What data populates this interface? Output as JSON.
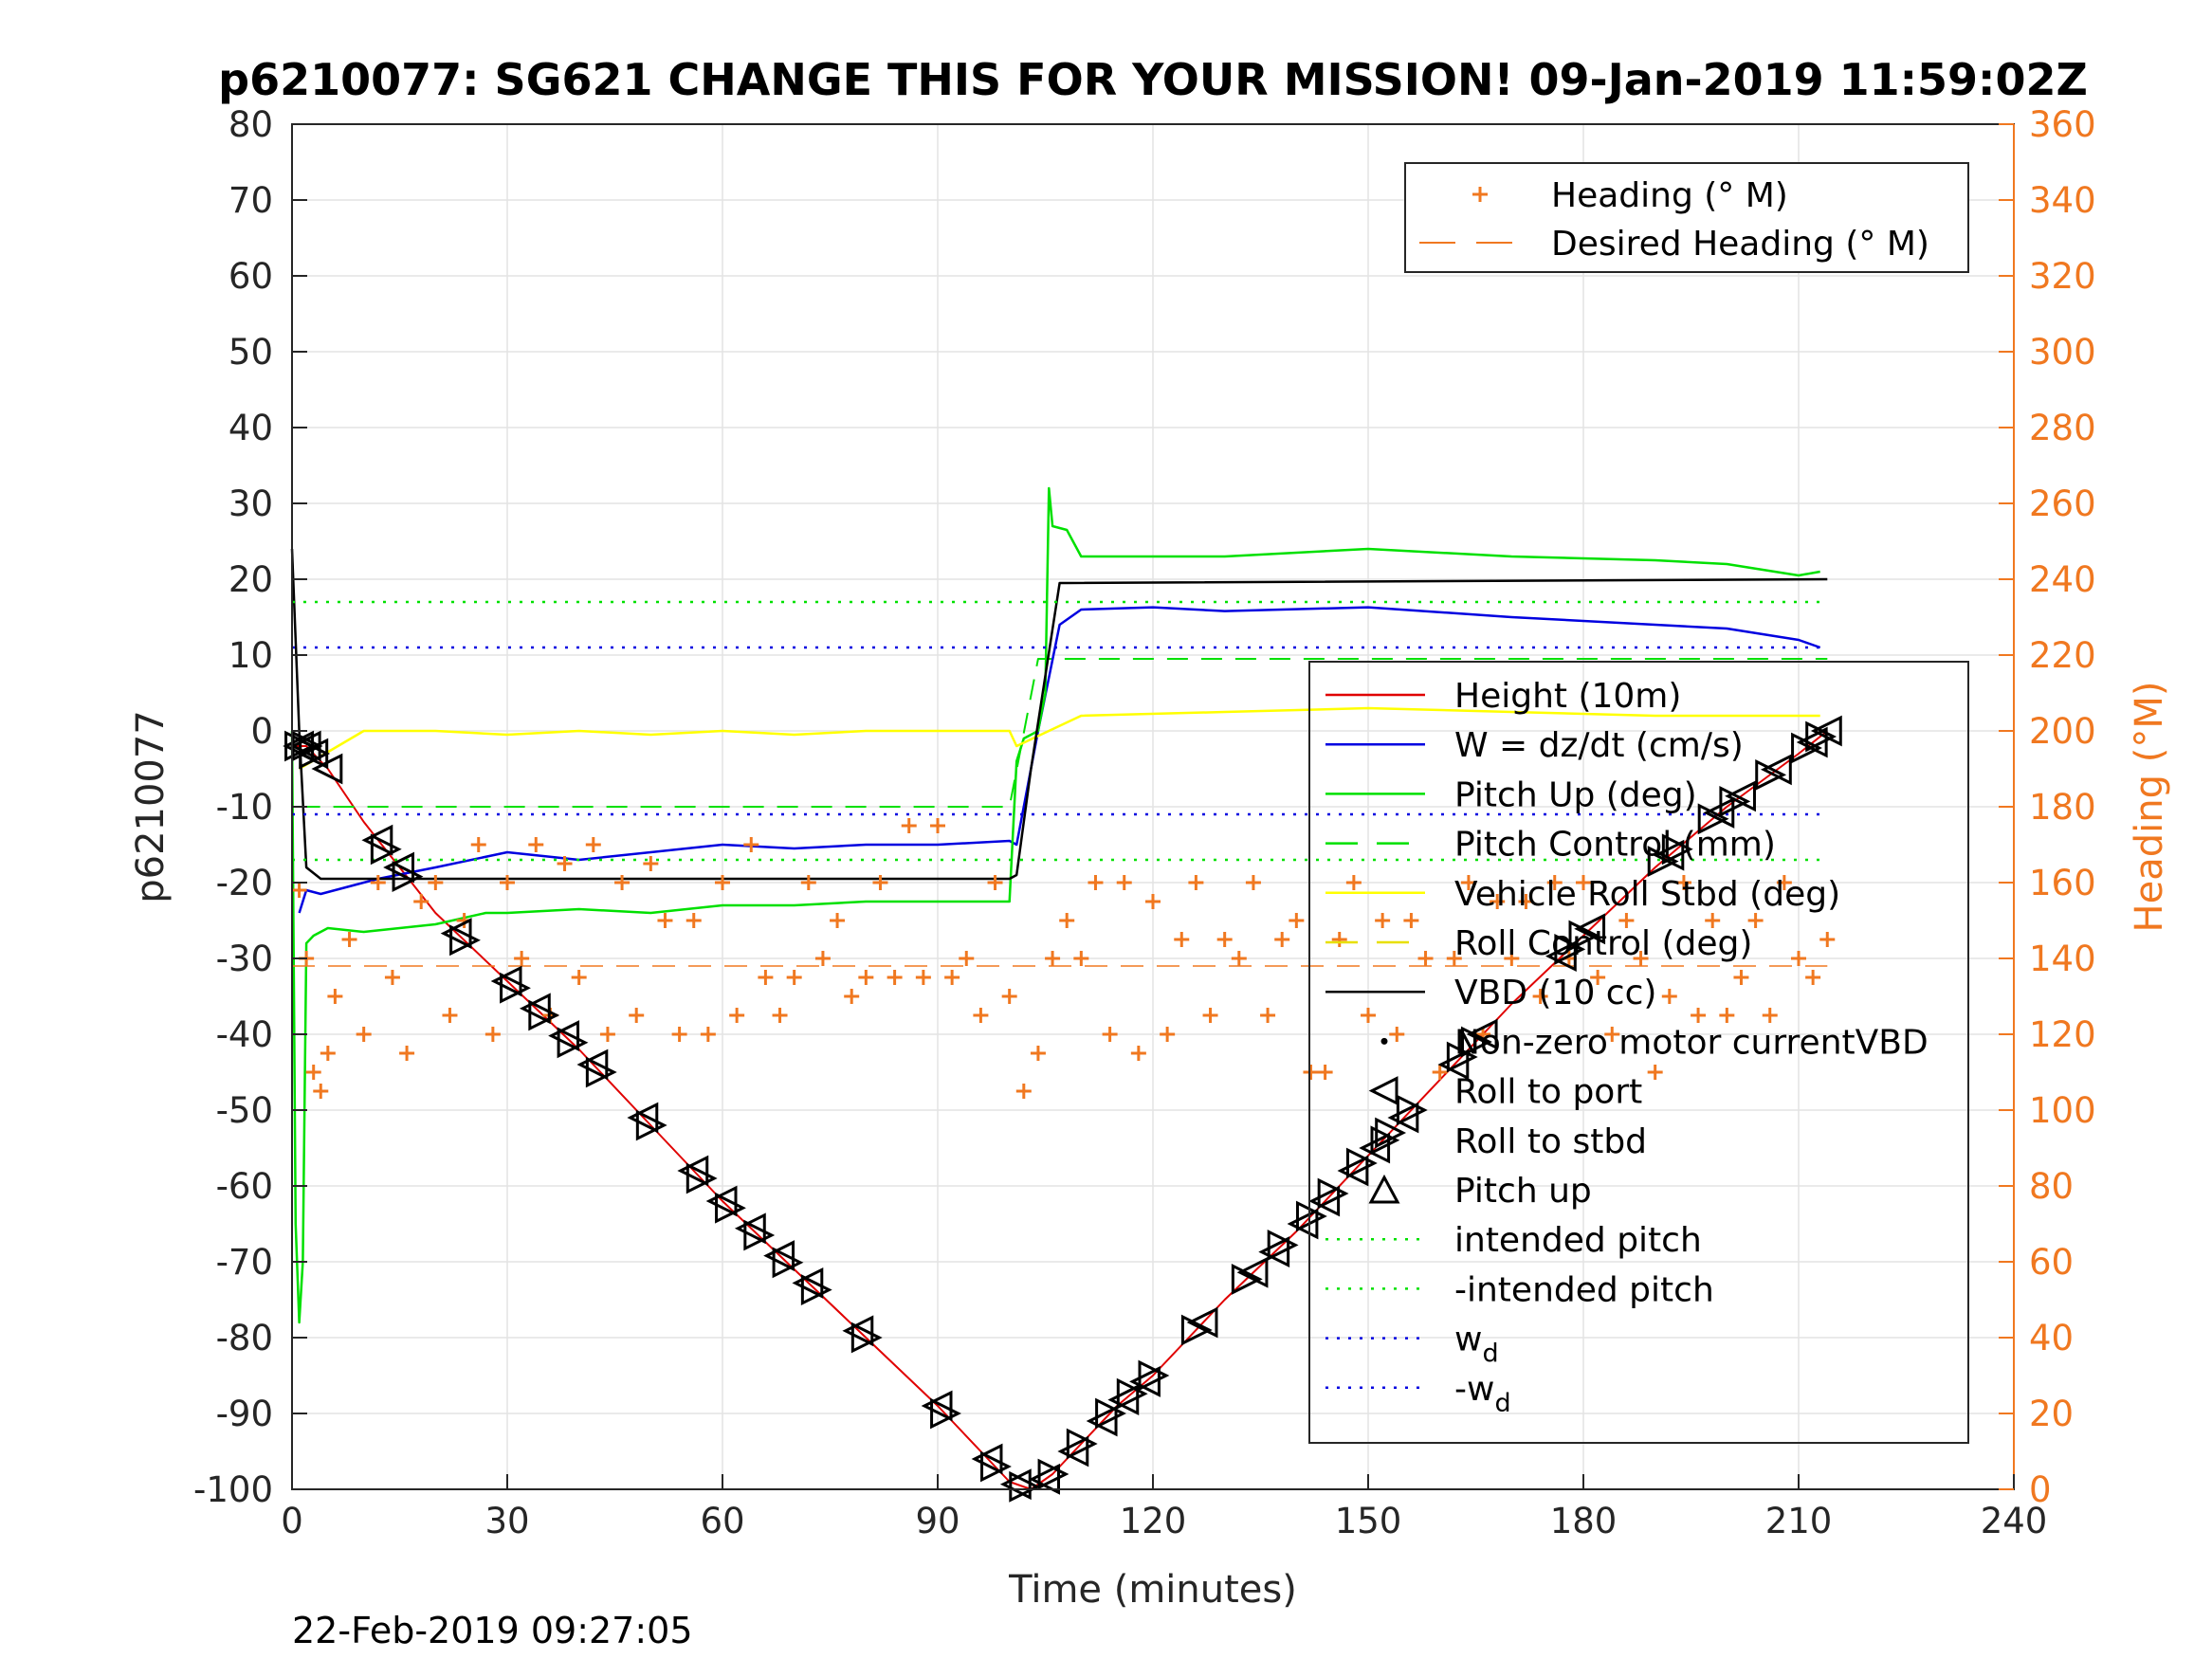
{
  "chart_data": {
    "type": "line",
    "title": "p6210077: SG621 CHANGE THIS FOR YOUR MISSION! 09-Jan-2019 11:59:02Z",
    "xlabel": "Time (minutes)",
    "ylabel_left": "p6210077",
    "ylabel_right": "Heading (°M)",
    "footer": "22-Feb-2019 09:27:05",
    "xlim": [
      0,
      240
    ],
    "ylim_left": [
      -100,
      80
    ],
    "ylim_right": [
      0,
      360
    ],
    "x_ticks": [
      0,
      30,
      60,
      90,
      120,
      150,
      180,
      210,
      240
    ],
    "y_ticks_left": [
      80,
      70,
      60,
      50,
      40,
      30,
      20,
      10,
      0,
      -10,
      -20,
      -30,
      -40,
      -50,
      -60,
      -70,
      -80,
      -90,
      -100
    ],
    "y_ticks_right": [
      360,
      340,
      320,
      300,
      280,
      260,
      240,
      220,
      200,
      180,
      160,
      140,
      120,
      100,
      80,
      60,
      40,
      20,
      0
    ],
    "grid": true,
    "colors": {
      "height": "#e00000",
      "w": "#0000e0",
      "pitch_up": "#00e000",
      "pitch_control": "#00e000",
      "roll": "#ffff00",
      "roll_control": "#e8e000",
      "vbd": "#000000",
      "heading": "#f07820",
      "intended_pitch": "#00e000",
      "wd": "#0000e0",
      "markers": "#000000"
    },
    "legend_heading": {
      "position": "top-right",
      "entries": [
        {
          "label": "Heading (° M)",
          "style": "plus"
        },
        {
          "label": "Desired Heading (° M)",
          "style": "dash"
        }
      ]
    },
    "legend_main": {
      "position": "right",
      "entries": [
        {
          "label": "Height (10m)",
          "style": "line",
          "color": "#e00000"
        },
        {
          "label": "W = dz/dt (cm/s)",
          "style": "line",
          "color": "#0000e0"
        },
        {
          "label": "Pitch Up (deg)",
          "style": "line",
          "color": "#00e000"
        },
        {
          "label": "Pitch Control (mm)",
          "style": "dash",
          "color": "#00e000"
        },
        {
          "label": "Vehicle Roll Stbd (deg)",
          "style": "line",
          "color": "#ffff00"
        },
        {
          "label": "Roll Control (deg)",
          "style": "dash",
          "color": "#e8e000"
        },
        {
          "label": "VBD (10 cc)",
          "style": "line",
          "color": "#000000"
        },
        {
          "label": "Non-zero motor currentVBD",
          "style": "dot",
          "color": "#000000"
        },
        {
          "label": "Roll to port",
          "style": "tri-left",
          "color": "#000000"
        },
        {
          "label": "Roll to stbd",
          "style": "tri-right",
          "color": "#000000"
        },
        {
          "label": "Pitch up",
          "style": "tri-up",
          "color": "#000000"
        },
        {
          "label": "intended pitch",
          "style": "dotted",
          "color": "#00e000"
        },
        {
          "label": "-intended pitch",
          "style": "dotted",
          "color": "#00e000"
        },
        {
          "label": "w_d",
          "label_main": "w",
          "label_sub": "d",
          "style": "dotted",
          "color": "#0000e0"
        },
        {
          "label": "-w_d",
          "label_main": "-w",
          "label_sub": "d",
          "style": "dotted",
          "color": "#0000e0"
        }
      ]
    },
    "series": [
      {
        "name": "Height (10m)",
        "x": [
          0,
          2,
          5,
          10,
          15,
          20,
          30,
          40,
          50,
          60,
          70,
          80,
          90,
          97,
          100,
          103,
          106,
          110,
          115,
          120,
          130,
          140,
          150,
          160,
          170,
          180,
          190,
          200,
          210,
          214
        ],
        "y": [
          -2,
          -2,
          -5,
          -12,
          -18,
          -24,
          -33,
          -42,
          -52,
          -62,
          -71,
          -80,
          -89,
          -96,
          -99,
          -100,
          -98,
          -94,
          -89,
          -85,
          -75,
          -66,
          -56,
          -46,
          -36,
          -27,
          -18,
          -10,
          -3,
          0
        ]
      },
      {
        "name": "W = dz/dt (cm/s)",
        "x": [
          1,
          2,
          4,
          8,
          12,
          20,
          30,
          40,
          50,
          60,
          70,
          80,
          90,
          100,
          101,
          104,
          107,
          110,
          120,
          130,
          150,
          170,
          190,
          200,
          210,
          213
        ],
        "y": [
          -24,
          -21,
          -21.5,
          -20.5,
          -19.5,
          -18,
          -16,
          -17,
          -16,
          -15,
          -15.5,
          -15,
          -15,
          -14.5,
          -15,
          0,
          14,
          16,
          16.3,
          15.8,
          16.3,
          15,
          14,
          13.5,
          12,
          11
        ]
      },
      {
        "name": "Pitch Up (deg)",
        "x": [
          0,
          0.5,
          1,
          1.5,
          2,
          3,
          5,
          10,
          20,
          27,
          30,
          40,
          50,
          60,
          70,
          80,
          90,
          100,
          101,
          102,
          104,
          105,
          105.5,
          106,
          108,
          110,
          130,
          150,
          170,
          190,
          200,
          210,
          213
        ],
        "y": [
          0,
          -65,
          -78,
          -70,
          -28,
          -27,
          -26,
          -26.5,
          -25.5,
          -24,
          -24,
          -23.5,
          -24,
          -23,
          -23,
          -22.5,
          -22.5,
          -22.5,
          -4,
          -1,
          0,
          5,
          32,
          27,
          26.5,
          23,
          23,
          24,
          23,
          22.5,
          22,
          20.5,
          21
        ]
      },
      {
        "name": "Pitch Control (mm)",
        "x": [
          1,
          100,
          104,
          214
        ],
        "y": [
          -10,
          -10,
          9.5,
          9.5
        ]
      },
      {
        "name": "Vehicle Roll Stbd (deg)",
        "x": [
          1,
          10,
          20,
          30,
          40,
          50,
          60,
          70,
          80,
          90,
          100,
          101,
          110,
          130,
          150,
          170,
          190,
          213
        ],
        "y": [
          -5,
          0,
          0,
          -0.5,
          0,
          -0.5,
          0,
          -0.5,
          0,
          0,
          0,
          -2,
          2,
          2.5,
          3,
          2.5,
          2,
          2
        ]
      },
      {
        "name": "VBD (10 cc)",
        "x": [
          0,
          1,
          2,
          4,
          100,
          101,
          103,
          107,
          108,
          214
        ],
        "y": [
          24,
          0,
          -18,
          -19.5,
          -19.5,
          -19,
          -5,
          19.5,
          19.5,
          20
        ]
      },
      {
        "name": "intended pitch",
        "x": [
          0,
          214
        ],
        "y": [
          17,
          17
        ]
      },
      {
        "name": "-intended pitch",
        "x": [
          0,
          214
        ],
        "y": [
          -17,
          -17
        ]
      },
      {
        "name": "w_d",
        "x": [
          0,
          214
        ],
        "y": [
          11,
          11
        ]
      },
      {
        "name": "-w_d",
        "x": [
          0,
          214
        ],
        "y": [
          -11,
          -11
        ]
      },
      {
        "name": "Desired Heading (° M)",
        "x": [
          0,
          214
        ],
        "y_right": [
          138,
          138
        ]
      }
    ],
    "heading_points": {
      "x": [
        1,
        2,
        3,
        4,
        5,
        6,
        8,
        10,
        12,
        14,
        16,
        18,
        20,
        22,
        24,
        26,
        28,
        30,
        32,
        34,
        36,
        38,
        40,
        42,
        44,
        46,
        48,
        50,
        52,
        54,
        56,
        58,
        60,
        62,
        64,
        66,
        68,
        70,
        72,
        74,
        76,
        78,
        80,
        82,
        84,
        86,
        88,
        90,
        92,
        94,
        96,
        98,
        100,
        102,
        104,
        106,
        108,
        110,
        112,
        114,
        116,
        118,
        120,
        122,
        124,
        126,
        128,
        130,
        132,
        134,
        136,
        138,
        140,
        142,
        144,
        146,
        148,
        150,
        152,
        154,
        156,
        158,
        160,
        162,
        164,
        166,
        168,
        170,
        172,
        174,
        176,
        178,
        180,
        182,
        184,
        186,
        188,
        190,
        192,
        194,
        196,
        198,
        200,
        202,
        204,
        206,
        208,
        210,
        212,
        214
      ],
      "y_right": [
        158,
        140,
        110,
        105,
        115,
        130,
        145,
        120,
        160,
        135,
        115,
        155,
        160,
        125,
        150,
        170,
        120,
        160,
        140,
        170,
        125,
        165,
        135,
        170,
        120,
        160,
        125,
        165,
        150,
        120,
        150,
        120,
        160,
        125,
        170,
        135,
        125,
        135,
        160,
        140,
        150,
        130,
        135,
        160,
        135,
        175,
        135,
        175,
        135,
        140,
        125,
        160,
        130,
        105,
        115,
        140,
        150,
        140,
        160,
        120,
        160,
        115,
        155,
        120,
        145,
        160,
        125,
        145,
        140,
        160,
        125,
        145,
        150,
        110,
        110,
        145,
        160,
        125,
        150,
        120,
        150,
        140,
        110,
        140,
        160,
        120,
        155,
        140,
        155,
        130,
        160,
        140,
        160,
        135,
        120,
        150,
        140,
        110,
        130,
        160,
        125,
        150,
        125,
        135,
        150,
        125,
        160,
        140,
        135,
        145
      ]
    },
    "markers": {
      "roll_to_port_x": [
        1,
        2,
        3,
        5,
        12,
        15,
        23,
        30,
        34,
        38,
        42,
        49,
        56,
        60,
        64,
        68,
        72,
        79,
        90,
        97,
        101,
        105,
        109,
        113,
        116,
        119,
        127,
        134,
        137,
        141,
        144,
        148,
        151,
        155,
        162,
        166,
        177,
        181,
        192,
        199,
        202,
        207,
        212,
        214
      ],
      "roll_to_stbd_x": [
        1,
        2,
        3,
        13,
        16,
        24,
        31,
        35,
        39,
        43,
        50,
        57,
        61,
        65,
        69,
        73,
        80,
        91,
        98,
        102,
        106,
        110,
        114,
        117,
        120,
        126,
        133,
        138,
        142,
        145,
        149,
        153,
        156,
        163,
        165,
        178,
        180,
        191,
        193,
        198,
        201,
        206,
        211,
        213
      ]
    }
  }
}
